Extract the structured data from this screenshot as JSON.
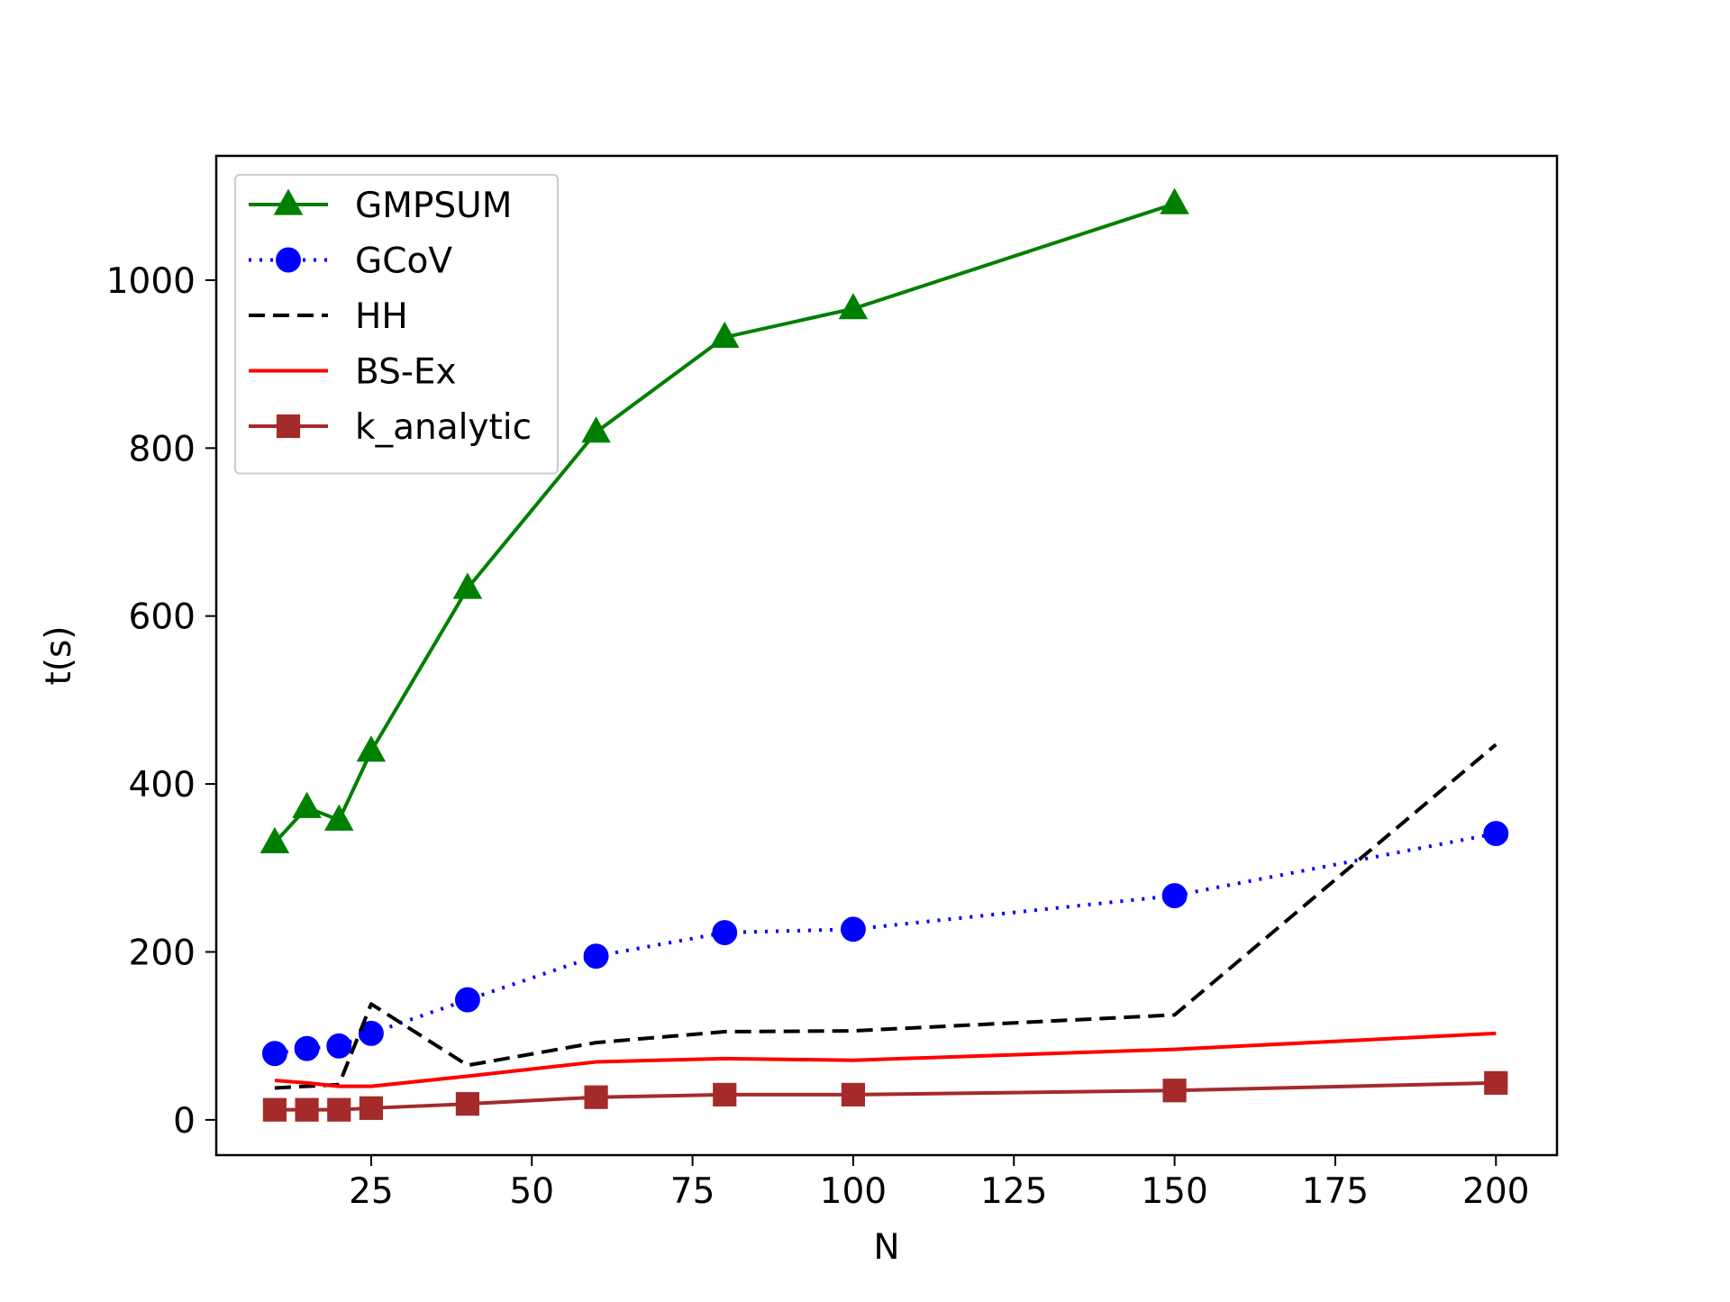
{
  "chart_data": {
    "type": "line",
    "title": "",
    "xlabel": "N",
    "ylabel": "t(s)",
    "xlim": [
      0.9,
      209.5
    ],
    "ylim": [
      -42,
      1148
    ],
    "xticks": [
      25,
      50,
      75,
      100,
      125,
      150,
      175,
      200
    ],
    "yticks": [
      0,
      200,
      400,
      600,
      800,
      1000
    ],
    "grid": false,
    "legend_position": "top-left",
    "series": [
      {
        "name": "GMPSUM",
        "color": "#008000",
        "line_style": "solid",
        "marker": "triangle",
        "x": [
          10,
          15,
          20,
          25,
          40,
          60,
          80,
          100,
          150
        ],
        "y": [
          330,
          372,
          357,
          439,
          633,
          819,
          932,
          966,
          1091
        ]
      },
      {
        "name": "GCoV",
        "color": "#0000ff",
        "line_style": "dotted",
        "marker": "circle",
        "x": [
          10,
          15,
          20,
          25,
          40,
          60,
          80,
          100,
          150,
          200
        ],
        "y": [
          79,
          85,
          88,
          103,
          143,
          195,
          223,
          227,
          267,
          341
        ]
      },
      {
        "name": "HH",
        "color": "#000000",
        "line_style": "dashed",
        "marker": "none",
        "x": [
          10,
          20,
          25,
          40,
          60,
          80,
          100,
          150,
          200
        ],
        "y": [
          38,
          42,
          138,
          65,
          92,
          105,
          106,
          125,
          447
        ]
      },
      {
        "name": "BS-Ex",
        "color": "#ff0000",
        "line_style": "solid",
        "marker": "none",
        "x": [
          10,
          15,
          20,
          25,
          40,
          60,
          80,
          100,
          150,
          200
        ],
        "y": [
          47,
          44,
          40,
          40,
          52,
          69,
          73,
          71,
          84,
          103
        ]
      },
      {
        "name": "k_analytic",
        "color": "#a52a2a",
        "line_style": "solid",
        "marker": "square",
        "x": [
          10,
          15,
          20,
          25,
          40,
          60,
          80,
          100,
          150,
          200
        ],
        "y": [
          12,
          12,
          12,
          14,
          19,
          27,
          30,
          30,
          35,
          44
        ]
      }
    ]
  }
}
